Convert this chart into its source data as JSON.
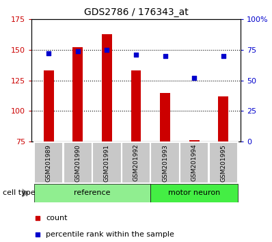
{
  "title": "GDS2786 / 176343_at",
  "samples": [
    "GSM201989",
    "GSM201990",
    "GSM201991",
    "GSM201992",
    "GSM201993",
    "GSM201994",
    "GSM201995"
  ],
  "counts": [
    133,
    152,
    163,
    133,
    115,
    76,
    112
  ],
  "percentiles": [
    72,
    74,
    75,
    71,
    70,
    52,
    70
  ],
  "ylim_left": [
    75,
    175
  ],
  "ylim_right": [
    0,
    100
  ],
  "yticks_left": [
    75,
    100,
    125,
    150,
    175
  ],
  "yticks_right": [
    0,
    25,
    50,
    75,
    100
  ],
  "ytick_labels_right": [
    "0",
    "25",
    "50",
    "75",
    "100%"
  ],
  "bar_color": "#cc0000",
  "dot_color": "#0000cc",
  "bg_group_reference": "#90ee90",
  "bg_group_motor": "#44ee44",
  "bg_sample_box": "#c8c8c8",
  "cell_type_label": "cell type",
  "legend_count": "count",
  "legend_percentile": "percentile rank within the sample",
  "group_ref_label": "reference",
  "group_mot_label": "motor neuron",
  "ref_indices": [
    0,
    1,
    2,
    3
  ],
  "mot_indices": [
    4,
    5,
    6
  ]
}
